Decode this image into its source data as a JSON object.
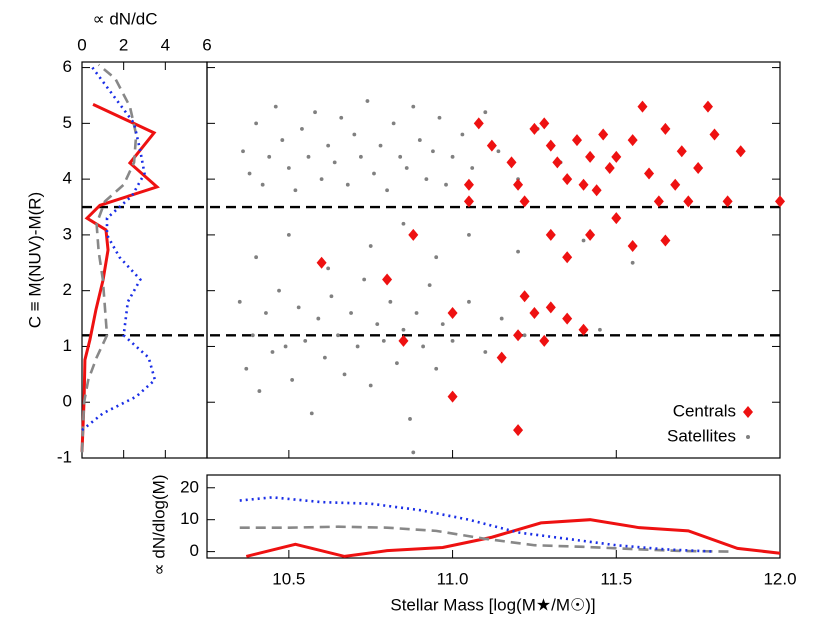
{
  "chart_data": [
    {
      "type": "scatter",
      "ylabel": "C ≡ M(NUV)-M(R)",
      "xlim": [
        10.25,
        12.0
      ],
      "ylim": [
        -1,
        6.1
      ],
      "yticks": [
        -1,
        0,
        1,
        2,
        3,
        4,
        5,
        6
      ],
      "hlines": [
        3.5,
        1.2
      ],
      "legend": "lower right",
      "series": [
        {
          "name": "Centrals",
          "color": "#ee1111",
          "marker": "diamond",
          "x": [
            11.25,
            11.28,
            11.3,
            11.32,
            11.35,
            11.38,
            11.4,
            11.42,
            11.44,
            11.46,
            11.48,
            11.5,
            11.55,
            11.58,
            11.6,
            11.63,
            11.65,
            11.68,
            11.7,
            11.72,
            11.75,
            11.78,
            11.8,
            11.84,
            11.88,
            12.0,
            11.12,
            11.08,
            11.05,
            11.2,
            11.22,
            11.18,
            11.3,
            11.35,
            11.42,
            11.5,
            11.55,
            11.65,
            11.22,
            11.25,
            11.3,
            11.35,
            11.4,
            11.2,
            11.28,
            11.15,
            11.0,
            11.2,
            10.85,
            10.8,
            10.6,
            10.88,
            11.05,
            11.0
          ],
          "values": [
            4.9,
            5.0,
            4.6,
            4.3,
            4.0,
            4.7,
            3.9,
            4.4,
            3.8,
            4.8,
            4.2,
            4.4,
            4.7,
            5.3,
            4.1,
            3.6,
            4.9,
            3.9,
            4.5,
            3.6,
            4.2,
            5.3,
            4.8,
            3.6,
            4.5,
            3.6,
            4.6,
            5.0,
            3.9,
            3.9,
            3.6,
            4.3,
            3.0,
            2.6,
            3.0,
            3.3,
            2.8,
            2.9,
            1.9,
            1.6,
            1.7,
            1.5,
            1.3,
            1.2,
            1.1,
            0.8,
            0.1,
            -0.5,
            1.1,
            2.2,
            2.5,
            3.0,
            3.6,
            1.6
          ]
        },
        {
          "name": "Satellites",
          "color": "#808080",
          "marker": "dot",
          "x": [
            10.36,
            10.38,
            10.4,
            10.42,
            10.44,
            10.46,
            10.48,
            10.5,
            10.52,
            10.54,
            10.56,
            10.58,
            10.6,
            10.62,
            10.64,
            10.66,
            10.68,
            10.7,
            10.72,
            10.74,
            10.76,
            10.78,
            10.8,
            10.82,
            10.84,
            10.86,
            10.88,
            10.9,
            10.92,
            10.94,
            10.96,
            10.98,
            11.0,
            11.03,
            11.06,
            11.1,
            11.14,
            11.2,
            11.26,
            11.33,
            10.4,
            10.5,
            10.62,
            10.75,
            10.85,
            10.95,
            11.05,
            11.2,
            11.4,
            11.55,
            10.35,
            10.37,
            10.39,
            10.41,
            10.43,
            10.45,
            10.47,
            10.49,
            10.51,
            10.53,
            10.55,
            10.57,
            10.59,
            10.61,
            10.63,
            10.65,
            10.67,
            10.69,
            10.71,
            10.73,
            10.75,
            10.77,
            10.79,
            10.81,
            10.83,
            10.85,
            10.87,
            10.89,
            10.91,
            10.93,
            10.95,
            10.97,
            11.0,
            11.05,
            11.1,
            11.15,
            11.22,
            11.3,
            11.45,
            10.88
          ],
          "values": [
            4.5,
            4.1,
            5.0,
            3.9,
            4.4,
            5.3,
            4.7,
            4.2,
            3.8,
            4.9,
            4.4,
            5.2,
            4.0,
            4.6,
            4.3,
            5.1,
            3.9,
            4.8,
            4.4,
            5.4,
            4.1,
            4.6,
            3.8,
            5.0,
            4.4,
            4.2,
            5.3,
            4.7,
            4.0,
            4.5,
            5.1,
            3.9,
            4.4,
            4.8,
            4.2,
            5.2,
            4.5,
            4.0,
            4.9,
            4.3,
            2.6,
            3.0,
            2.4,
            2.8,
            3.2,
            2.6,
            3.0,
            2.7,
            2.9,
            2.5,
            1.8,
            0.6,
            1.2,
            0.2,
            1.6,
            0.9,
            2.0,
            1.0,
            0.4,
            1.7,
            1.1,
            -0.2,
            1.5,
            0.8,
            1.9,
            1.2,
            0.5,
            1.6,
            1.0,
            2.2,
            0.3,
            1.4,
            1.1,
            1.8,
            0.7,
            1.3,
            -0.3,
            1.6,
            1.0,
            2.1,
            0.6,
            1.4,
            1.1,
            1.8,
            0.9,
            1.5,
            1.2,
            1.7,
            1.3,
            -0.9
          ]
        }
      ]
    },
    {
      "type": "hline",
      "xlabel": "∝ dN/dC",
      "xlim": [
        0,
        6
      ],
      "xticks": [
        0,
        2,
        4,
        6
      ],
      "series": [
        {
          "color": "#ee1111",
          "dash": "solid",
          "y": [
            -0.89,
            0.04,
            0.76,
            1.12,
            1.66,
            2.19,
            2.73,
            3.09,
            3.3,
            3.53,
            3.86,
            4.29,
            4.83,
            5.34
          ],
          "values": [
            0,
            0.1,
            0.14,
            0.38,
            0.67,
            1.01,
            1.25,
            1.15,
            0.24,
            0.86,
            3.6,
            2.3,
            3.46,
            0.53
          ]
        },
        {
          "color": "#888888",
          "dash": "dashed",
          "y": [
            -0.9,
            0,
            0.4,
            0.8,
            1.2,
            1.7,
            2.2,
            2.7,
            3.2,
            3.6,
            3.9,
            4.3,
            4.8,
            5.3,
            5.8,
            6.05
          ],
          "values": [
            0,
            0.1,
            0.3,
            0.7,
            1.2,
            1.1,
            1.0,
            0.8,
            0.7,
            1.1,
            2.0,
            2.5,
            2.6,
            2.3,
            1.6,
            0.8
          ]
        },
        {
          "color": "#1a2ee6",
          "dash": "dotted",
          "y": [
            -0.5,
            -0.2,
            0.1,
            0.4,
            0.8,
            1.2,
            1.8,
            2.2,
            2.6,
            3.0,
            3.3,
            3.7,
            4.1,
            4.5,
            5.0,
            5.5,
            6.0
          ],
          "values": [
            0,
            1,
            2.6,
            3.5,
            3.2,
            2.0,
            2.2,
            2.8,
            1.8,
            1.2,
            1.2,
            2.4,
            3.0,
            2.8,
            2.5,
            1.5,
            0.5
          ]
        }
      ]
    },
    {
      "type": "line",
      "xlabel": "Stellar Mass [log(M★/M☉)]",
      "ylabel": "∝ dN/dlog(M)",
      "xlim": [
        10.25,
        12.0
      ],
      "ylim": [
        -2,
        24
      ],
      "xticks": [
        10.5,
        {
          "value": 11,
          "label": "11.0"
        },
        11.5,
        {
          "value": 12,
          "label": "12.0"
        }
      ],
      "yticks": [
        0,
        10,
        20
      ],
      "series": [
        {
          "color": "#ee1111",
          "dash": "solid",
          "x": [
            10.37,
            10.52,
            10.67,
            10.8,
            10.97,
            11.12,
            11.27,
            11.42,
            11.57,
            11.72,
            11.87,
            12.0
          ],
          "values": [
            -1.5,
            2.3,
            -1.5,
            0.3,
            1.3,
            4.5,
            9,
            10,
            7.5,
            6.5,
            1,
            -0.5
          ]
        },
        {
          "color": "#888888",
          "dash": "dashed",
          "x": [
            10.35,
            10.5,
            10.65,
            10.8,
            10.95,
            11.1,
            11.25,
            11.4,
            11.55,
            11.7,
            11.85
          ],
          "values": [
            7.5,
            7.5,
            7.8,
            7.5,
            6.5,
            4,
            2,
            1.5,
            0.8,
            0.2,
            0
          ]
        },
        {
          "color": "#1a2ee6",
          "dash": "dotted",
          "x": [
            10.35,
            10.45,
            10.6,
            10.75,
            10.9,
            11.05,
            11.2,
            11.35,
            11.5,
            11.65,
            11.8
          ],
          "values": [
            16,
            17,
            15.5,
            15,
            13,
            10,
            6,
            4,
            2,
            0.7,
            0
          ]
        }
      ]
    }
  ]
}
